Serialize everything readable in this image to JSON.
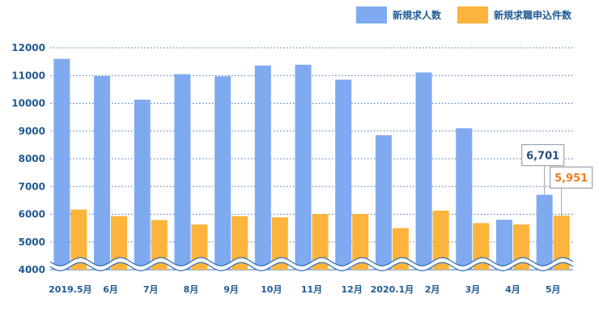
{
  "chart_data": {
    "type": "bar",
    "categories": [
      "2019.5月",
      "6月",
      "7月",
      "8月",
      "9月",
      "10月",
      "11月",
      "12月",
      "2020.1月",
      "2月",
      "3月",
      "4月",
      "5月"
    ],
    "series": [
      {
        "name": "新規求人数",
        "color": "#7faaf0",
        "values": [
          11600,
          10980,
          10130,
          11050,
          10970,
          11360,
          11390,
          10850,
          8850,
          11110,
          9100,
          5800,
          6701
        ]
      },
      {
        "name": "新規求職申込件数",
        "color": "#fcb43c",
        "values": [
          6170,
          5930,
          5790,
          5630,
          5930,
          5890,
          6010,
          6010,
          5500,
          6130,
          5680,
          5630,
          5951
        ]
      }
    ],
    "yticks": [
      4000,
      5000,
      6000,
      7000,
      8000,
      9000,
      10000,
      11000,
      12000
    ],
    "ylim": [
      4000,
      12500
    ],
    "axis_break": true,
    "grid": true,
    "legend_position": "top-right",
    "annotations": [
      {
        "category": "5月",
        "series": "新規求人数",
        "text": "6,701",
        "color": "#2c4f7c"
      },
      {
        "category": "5月",
        "series": "新規求職申込件数",
        "text": "5,951",
        "color": "#f07c1c"
      }
    ]
  }
}
